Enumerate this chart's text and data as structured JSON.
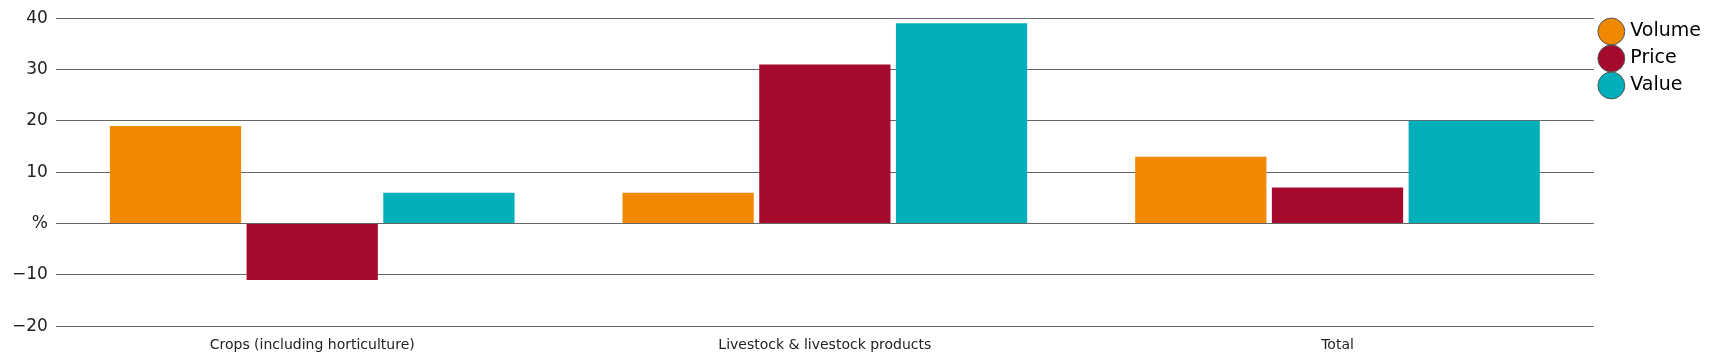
{
  "chart_data": {
    "type": "bar",
    "categories": [
      "Crops (including horticulture)",
      "Livestock & livestock products",
      "Total"
    ],
    "series": [
      {
        "name": "Volume",
        "color": "#f08800",
        "values": [
          19,
          6,
          13
        ]
      },
      {
        "name": "Price",
        "color": "#a50a2d",
        "values": [
          -11,
          31,
          7
        ]
      },
      {
        "name": "Value",
        "color": "#00afb9",
        "values": [
          6,
          39,
          20
        ]
      }
    ],
    "ylim": [
      -20,
      40
    ],
    "yticks": [
      {
        "value": -20,
        "label": "−20"
      },
      {
        "value": -10,
        "label": "−10"
      },
      {
        "value": 0,
        "label": "%"
      },
      10,
      20,
      30,
      40
    ],
    "grid": "y",
    "legend": "top right"
  }
}
